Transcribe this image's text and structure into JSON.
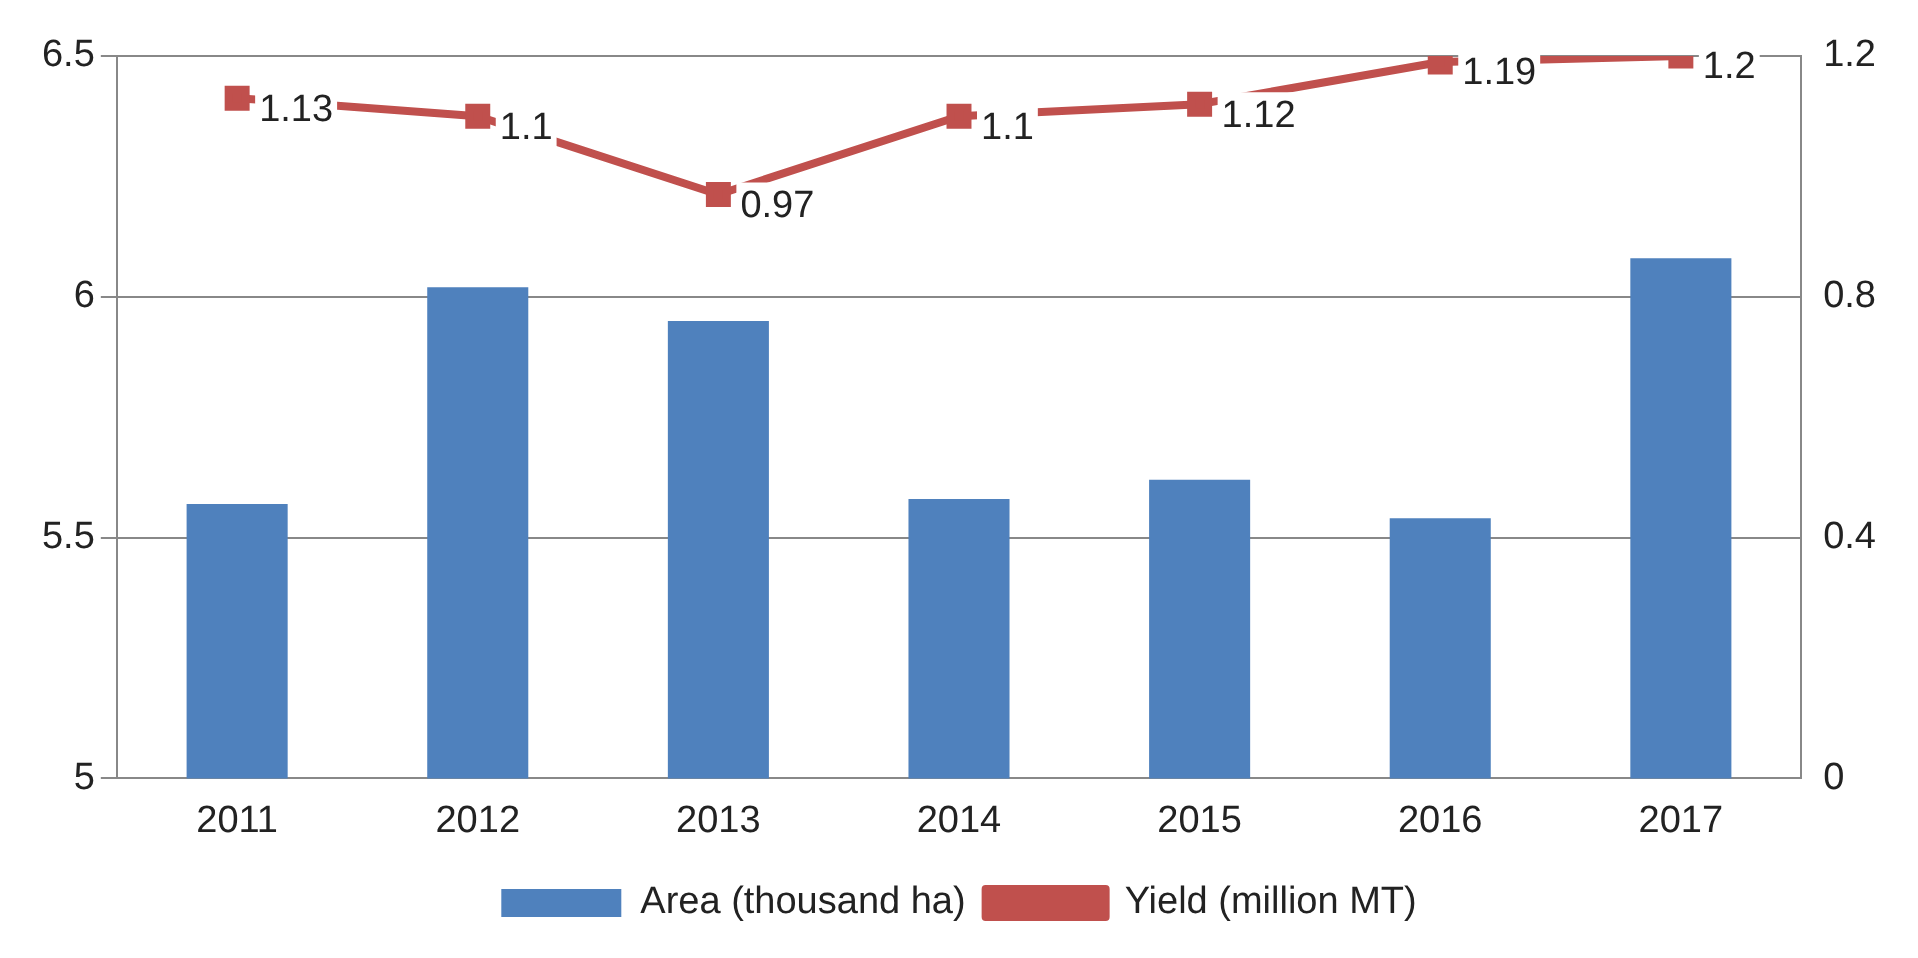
{
  "chart_data": {
    "type": "bar",
    "categories": [
      "2011",
      "2012",
      "2013",
      "2014",
      "2015",
      "2016",
      "2017"
    ],
    "series": [
      {
        "name": "Area (thousand ha)",
        "color": "#4f81bd",
        "values": [
          5.57,
          6.02,
          5.95,
          5.58,
          5.62,
          5.54,
          6.08
        ]
      },
      {
        "name": "Yield (million MT)",
        "type": "line",
        "axis": "y2",
        "color": "#c0504d",
        "values": [
          1.13,
          1.1,
          0.97,
          1.1,
          1.12,
          1.19,
          1.2
        ],
        "value_labels": [
          "1.13",
          "1.1",
          "0.97",
          "1.1",
          "1.12",
          "1.19",
          "1.2"
        ],
        "marker": "square"
      }
    ],
    "ylim": [
      5,
      6.5
    ],
    "yticks": [
      5,
      5.5,
      6,
      6.5
    ],
    "y2lim": [
      0,
      1.2
    ],
    "y2ticks": [
      0,
      0.4,
      0.8,
      1.2
    ],
    "grid": "y",
    "legend": "bottom"
  }
}
